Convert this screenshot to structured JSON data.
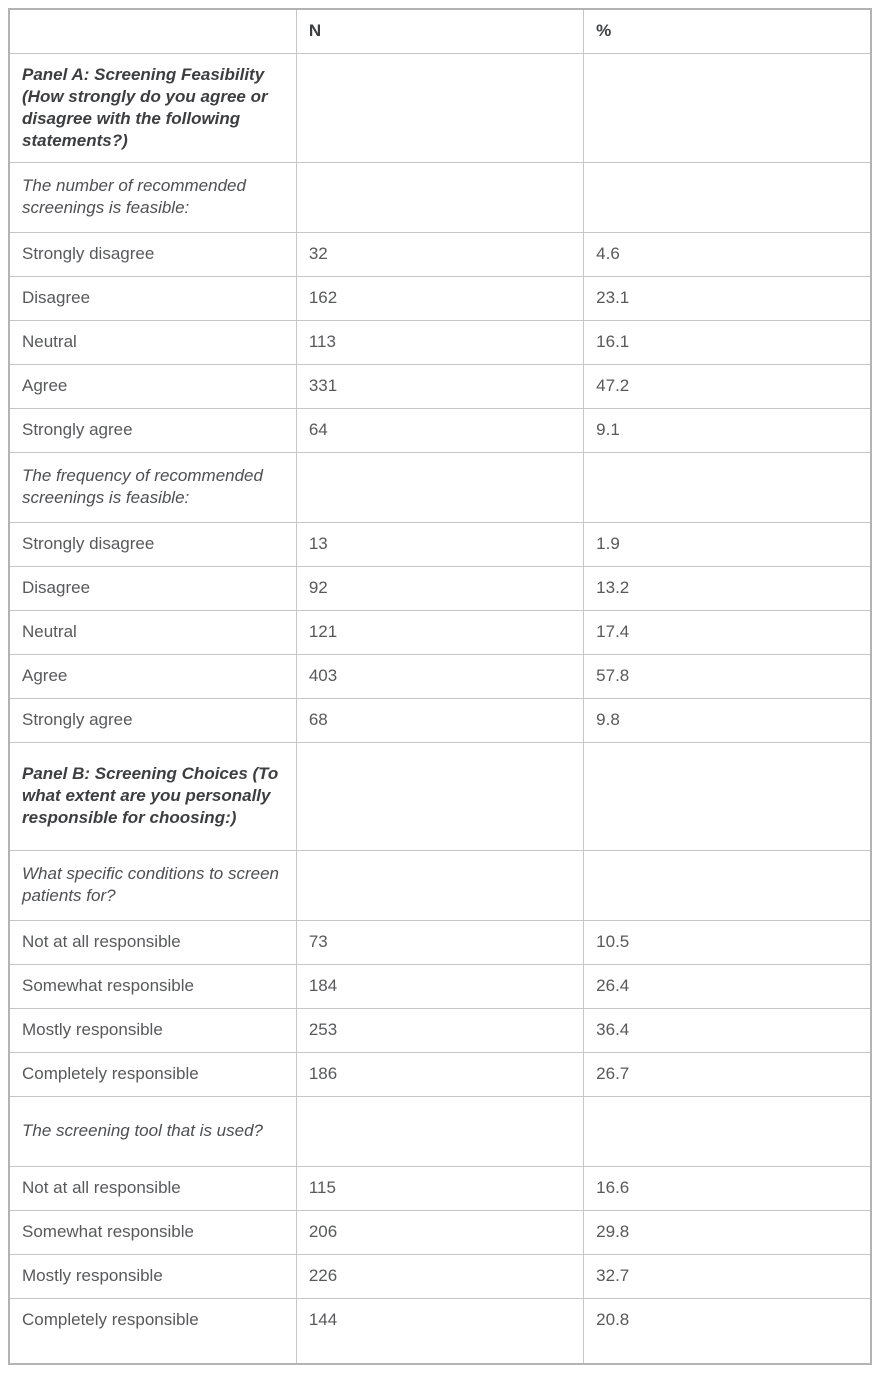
{
  "colors": {
    "border_inner": "#c6c6c6",
    "border_outer": "#b3b3b3",
    "text_body": "#58595b",
    "text_heading": "#3d3e40",
    "background": "#ffffff"
  },
  "chart_data": {
    "type": "table",
    "columns": [
      "",
      "N",
      "%"
    ],
    "rows": [
      {
        "type": "panel",
        "label": "Panel A: Screening Feasibility (How strongly do you agree or disagree with the following statements?)",
        "n": "",
        "pct": ""
      },
      {
        "type": "question",
        "label": "The number of recommended screenings is feasible:",
        "n": "",
        "pct": ""
      },
      {
        "type": "data",
        "label": "Strongly disagree",
        "n": "32",
        "pct": "4.6"
      },
      {
        "type": "data",
        "label": "Disagree",
        "n": "162",
        "pct": "23.1"
      },
      {
        "type": "data",
        "label": "Neutral",
        "n": "113",
        "pct": "16.1"
      },
      {
        "type": "data",
        "label": "Agree",
        "n": "331",
        "pct": "47.2"
      },
      {
        "type": "data",
        "label": "Strongly agree",
        "n": "64",
        "pct": "9.1"
      },
      {
        "type": "question",
        "label": "The frequency of recommended screenings is feasible:",
        "n": "",
        "pct": ""
      },
      {
        "type": "data",
        "label": "Strongly disagree",
        "n": "13",
        "pct": "1.9"
      },
      {
        "type": "data",
        "label": "Disagree",
        "n": "92",
        "pct": "13.2"
      },
      {
        "type": "data",
        "label": "Neutral",
        "n": "121",
        "pct": "17.4"
      },
      {
        "type": "data",
        "label": "Agree",
        "n": "403",
        "pct": "57.8"
      },
      {
        "type": "data",
        "label": "Strongly agree",
        "n": "68",
        "pct": "9.8"
      },
      {
        "type": "panel",
        "label": "Panel B: Screening Choices (To what extent are you personally responsible for choosing:)",
        "n": "",
        "pct": ""
      },
      {
        "type": "question",
        "label": "What specific conditions to screen patients for?",
        "n": "",
        "pct": ""
      },
      {
        "type": "data",
        "label": "Not at all responsible",
        "n": "73",
        "pct": "10.5"
      },
      {
        "type": "data",
        "label": "Somewhat responsible",
        "n": "184",
        "pct": "26.4"
      },
      {
        "type": "data",
        "label": "Mostly responsible",
        "n": "253",
        "pct": "36.4"
      },
      {
        "type": "data",
        "label": "Completely responsible",
        "n": "186",
        "pct": "26.7"
      },
      {
        "type": "question",
        "label": "The screening tool that is used?",
        "n": "",
        "pct": ""
      },
      {
        "type": "data",
        "label": "Not at all responsible",
        "n": "115",
        "pct": "16.6"
      },
      {
        "type": "data",
        "label": "Somewhat responsible",
        "n": "206",
        "pct": "29.8"
      },
      {
        "type": "data",
        "label": "Mostly responsible",
        "n": "226",
        "pct": "32.7"
      },
      {
        "type": "data",
        "label": "Completely responsible",
        "n": "144",
        "pct": "20.8"
      }
    ]
  }
}
